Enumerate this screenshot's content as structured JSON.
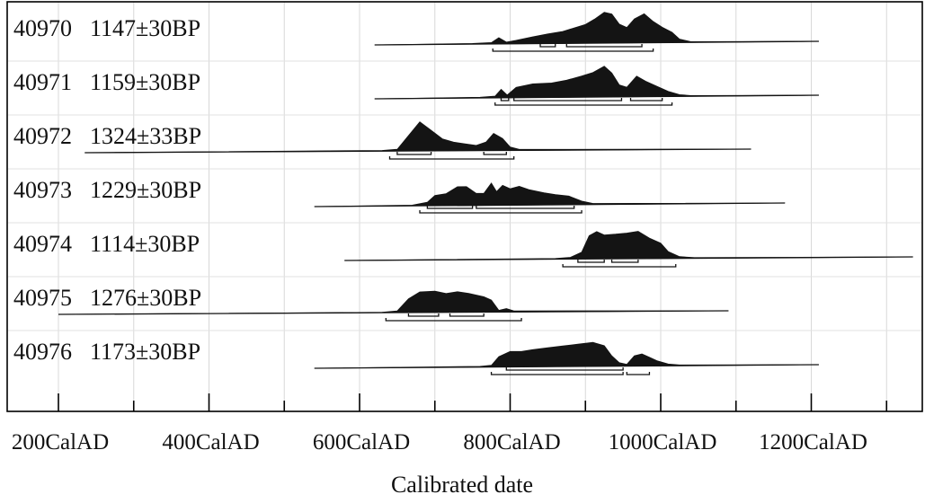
{
  "chart_data": {
    "type": "calibrated-date-distributions",
    "title": "",
    "xlabel": "Calibrated date",
    "ylabel": "",
    "xlim": [
      180,
      1350
    ],
    "grid": true,
    "tick_labels": [
      "200CalAD",
      "400CalAD",
      "600CalAD",
      "800CalAD",
      "1000CalAD",
      "1200CalAD"
    ],
    "tick_values": [
      200,
      400,
      600,
      800,
      1000,
      1200
    ],
    "minor_tick_step": 100,
    "series": [
      {
        "lab_id": "40970",
        "date_bp": "1147±30BP",
        "tail": [
          620,
          1210
        ],
        "curve": [
          [
            620,
            0
          ],
          [
            750,
            0.02
          ],
          [
            775,
            0.04
          ],
          [
            785,
            0.18
          ],
          [
            795,
            0.05
          ],
          [
            808,
            0.1
          ],
          [
            830,
            0.2
          ],
          [
            850,
            0.28
          ],
          [
            870,
            0.35
          ],
          [
            885,
            0.45
          ],
          [
            900,
            0.55
          ],
          [
            912,
            0.7
          ],
          [
            925,
            0.9
          ],
          [
            935,
            0.85
          ],
          [
            945,
            0.55
          ],
          [
            955,
            0.45
          ],
          [
            965,
            0.7
          ],
          [
            978,
            0.85
          ],
          [
            990,
            0.62
          ],
          [
            1002,
            0.45
          ],
          [
            1015,
            0.3
          ],
          [
            1025,
            0.1
          ],
          [
            1040,
            0.02
          ],
          [
            1210,
            0
          ]
        ],
        "ranges": [
          [
            [
              840,
              860
            ],
            [
              875,
              975
            ]
          ],
          [
            [
              777,
              990
            ]
          ]
        ]
      },
      {
        "lab_id": "40971",
        "date_bp": "1159±30BP",
        "tail": [
          620,
          1210
        ],
        "curve": [
          [
            620,
            0
          ],
          [
            760,
            0.02
          ],
          [
            780,
            0.05
          ],
          [
            788,
            0.25
          ],
          [
            796,
            0.08
          ],
          [
            808,
            0.3
          ],
          [
            830,
            0.4
          ],
          [
            855,
            0.42
          ],
          [
            875,
            0.5
          ],
          [
            895,
            0.62
          ],
          [
            910,
            0.72
          ],
          [
            925,
            0.9
          ],
          [
            935,
            0.7
          ],
          [
            945,
            0.35
          ],
          [
            955,
            0.28
          ],
          [
            968,
            0.6
          ],
          [
            980,
            0.45
          ],
          [
            995,
            0.3
          ],
          [
            1010,
            0.15
          ],
          [
            1025,
            0.05
          ],
          [
            1040,
            0.02
          ],
          [
            1210,
            0
          ]
        ],
        "ranges": [
          [
            [
              788,
              798
            ],
            [
              805,
              948
            ],
            [
              960,
              1002
            ]
          ],
          [
            [
              780,
              1015
            ]
          ]
        ]
      },
      {
        "lab_id": "40972",
        "date_bp": "1324±33BP",
        "tail": [
          235,
          1120
        ],
        "curve": [
          [
            235,
            0
          ],
          [
            630,
            0.02
          ],
          [
            650,
            0.05
          ],
          [
            665,
            0.45
          ],
          [
            680,
            0.85
          ],
          [
            695,
            0.6
          ],
          [
            710,
            0.35
          ],
          [
            725,
            0.25
          ],
          [
            740,
            0.2
          ],
          [
            755,
            0.15
          ],
          [
            768,
            0.25
          ],
          [
            778,
            0.5
          ],
          [
            790,
            0.35
          ],
          [
            800,
            0.1
          ],
          [
            812,
            0.03
          ],
          [
            1120,
            0
          ]
        ],
        "ranges": [
          [
            [
              650,
              695
            ],
            [
              765,
              795
            ]
          ],
          [
            [
              640,
              805
            ]
          ]
        ]
      },
      {
        "lab_id": "40973",
        "date_bp": "1229±30BP",
        "tail": [
          540,
          1165
        ],
        "curve": [
          [
            540,
            0
          ],
          [
            670,
            0.02
          ],
          [
            690,
            0.1
          ],
          [
            700,
            0.3
          ],
          [
            715,
            0.35
          ],
          [
            730,
            0.55
          ],
          [
            742,
            0.55
          ],
          [
            755,
            0.35
          ],
          [
            765,
            0.35
          ],
          [
            775,
            0.65
          ],
          [
            782,
            0.4
          ],
          [
            790,
            0.58
          ],
          [
            800,
            0.48
          ],
          [
            812,
            0.55
          ],
          [
            825,
            0.45
          ],
          [
            845,
            0.35
          ],
          [
            860,
            0.3
          ],
          [
            878,
            0.25
          ],
          [
            895,
            0.1
          ],
          [
            910,
            0.03
          ],
          [
            1165,
            0
          ]
        ],
        "ranges": [
          [
            [
              690,
              750
            ],
            [
              755,
              885
            ]
          ],
          [
            [
              680,
              895
            ]
          ]
        ]
      },
      {
        "lab_id": "40974",
        "date_bp": "1114±30BP",
        "tail": [
          580,
          1335
        ],
        "curve": [
          [
            580,
            0
          ],
          [
            860,
            0.02
          ],
          [
            880,
            0.05
          ],
          [
            895,
            0.2
          ],
          [
            905,
            0.68
          ],
          [
            915,
            0.8
          ],
          [
            925,
            0.7
          ],
          [
            940,
            0.72
          ],
          [
            955,
            0.75
          ],
          [
            970,
            0.8
          ],
          [
            985,
            0.6
          ],
          [
            1000,
            0.45
          ],
          [
            1010,
            0.2
          ],
          [
            1025,
            0.05
          ],
          [
            1045,
            0.02
          ],
          [
            1335,
            0
          ]
        ],
        "ranges": [
          [
            [
              890,
              925
            ],
            [
              935,
              970
            ]
          ],
          [
            [
              870,
              1020
            ]
          ]
        ]
      },
      {
        "lab_id": "40975",
        "date_bp": "1276±30BP",
        "tail": [
          200,
          1090
        ],
        "curve": [
          [
            200,
            0
          ],
          [
            630,
            0.01
          ],
          [
            650,
            0.05
          ],
          [
            665,
            0.4
          ],
          [
            680,
            0.6
          ],
          [
            700,
            0.62
          ],
          [
            715,
            0.55
          ],
          [
            730,
            0.6
          ],
          [
            745,
            0.55
          ],
          [
            755,
            0.5
          ],
          [
            765,
            0.45
          ],
          [
            775,
            0.35
          ],
          [
            785,
            0.05
          ],
          [
            795,
            0.1
          ],
          [
            805,
            0.03
          ],
          [
            1090,
            0
          ]
        ],
        "ranges": [
          [
            [
              665,
              705
            ],
            [
              720,
              765
            ]
          ],
          [
            [
              635,
              815
            ]
          ]
        ]
      },
      {
        "lab_id": "40976",
        "date_bp": "1173±30BP",
        "tail": [
          540,
          1210
        ],
        "curve": [
          [
            540,
            0
          ],
          [
            760,
            0.02
          ],
          [
            775,
            0.05
          ],
          [
            785,
            0.3
          ],
          [
            800,
            0.45
          ],
          [
            815,
            0.45
          ],
          [
            830,
            0.5
          ],
          [
            850,
            0.55
          ],
          [
            870,
            0.6
          ],
          [
            890,
            0.65
          ],
          [
            910,
            0.7
          ],
          [
            925,
            0.6
          ],
          [
            935,
            0.3
          ],
          [
            945,
            0.1
          ],
          [
            955,
            0.05
          ],
          [
            965,
            0.3
          ],
          [
            975,
            0.35
          ],
          [
            985,
            0.25
          ],
          [
            995,
            0.15
          ],
          [
            1010,
            0.05
          ],
          [
            1025,
            0.02
          ],
          [
            1210,
            0
          ]
        ],
        "ranges": [
          [
            [
              795,
              950
            ]
          ],
          [
            [
              775,
              950
            ],
            [
              955,
              985
            ]
          ]
        ]
      }
    ]
  }
}
